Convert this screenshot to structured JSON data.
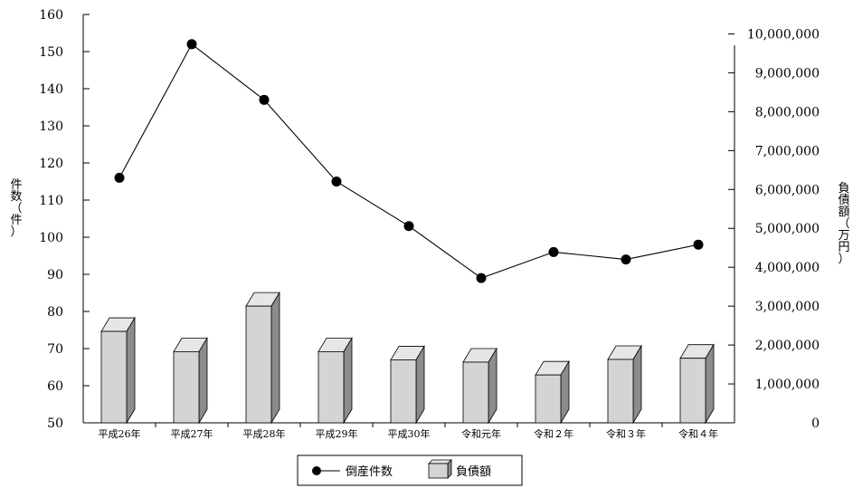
{
  "chart_data": {
    "type": "bar",
    "categories": [
      "平成26年",
      "平成27年",
      "平成28年",
      "平成29年",
      "平成30年",
      "令和元年",
      "令和２年",
      "令和３年",
      "令和４年"
    ],
    "series": [
      {
        "name": "倒産件数",
        "kind": "line",
        "axis": "left",
        "values": [
          116,
          152,
          137,
          115,
          103,
          89,
          96,
          94,
          98
        ]
      },
      {
        "name": "負債額",
        "kind": "bar",
        "axis": "right",
        "values": [
          2350000,
          1830000,
          3000000,
          1830000,
          1620000,
          1560000,
          1230000,
          1630000,
          1660000
        ]
      }
    ],
    "y_left": {
      "label": [
        "件",
        "数",
        "（",
        "件",
        "）"
      ],
      "range": [
        50,
        160
      ],
      "ticks": [
        "50",
        "60",
        "70",
        "80",
        "90",
        "100",
        "110",
        "120",
        "130",
        "140",
        "150",
        "160"
      ]
    },
    "y_right": {
      "label": [
        "負",
        "債",
        "額",
        "（",
        "万",
        "円",
        "）"
      ],
      "range": [
        0,
        10500000
      ],
      "ticks": [
        "0",
        "1,000,000",
        "2,000,000",
        "3,000,000",
        "4,000,000",
        "5,000,000",
        "6,000,000",
        "7,000,000",
        "8,000,000",
        "9,000,000",
        "10,000,000"
      ]
    },
    "grid": false,
    "legend": {
      "position": "bottom-center",
      "items": [
        "倒産件数",
        "負債額"
      ]
    },
    "colors": {
      "bar_front": "#d4d4d4",
      "bar_top": "#e6e6e6",
      "bar_side": "#8c8c8c",
      "line": "#000000",
      "marker": "#000000"
    }
  }
}
